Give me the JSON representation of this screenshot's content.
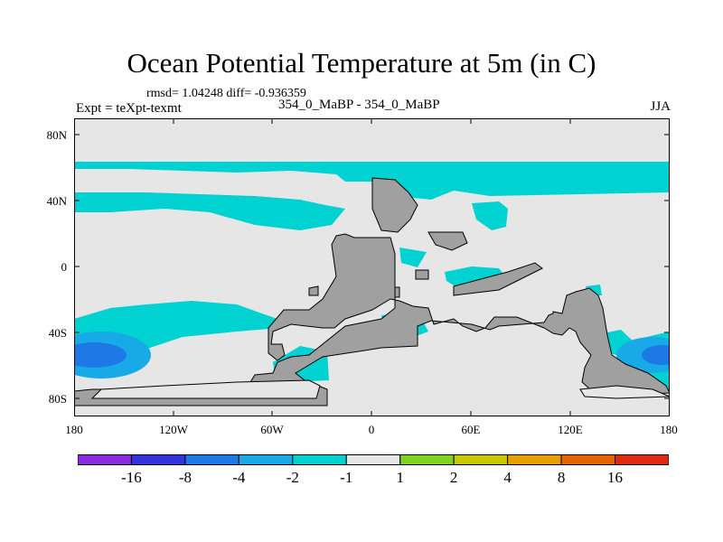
{
  "title": "Ocean Potential Temperature at 5m (in C)",
  "stats": "rmsd= 1.04248 diff= -0.936359",
  "expt": "Expt = teXpt-texmt",
  "case": "354_0_MaBP - 354_0_MaBP",
  "season": "JJA",
  "map": {
    "projection": "cylindrical-equidistant",
    "lon_range": [
      -180,
      180
    ],
    "lat_range": [
      -90,
      90
    ],
    "land_color": "#a0a0a0",
    "background_color": "#e6e6e6",
    "y_ticks": [
      "80N",
      "40N",
      "0",
      "40S",
      "80S"
    ],
    "x_ticks": [
      "180",
      "120W",
      "60W",
      "0",
      "60E",
      "120E",
      "180"
    ]
  },
  "legend": {
    "labels": [
      "-16",
      "-8",
      "-4",
      "-2",
      "-1",
      "1",
      "2",
      "4",
      "8",
      "16"
    ],
    "colors": [
      "#8a2be2",
      "#3333dd",
      "#1e78e6",
      "#18aae6",
      "#00d2d2",
      "#e6e6e6",
      "#7ed321",
      "#c8c800",
      "#e6a000",
      "#e66400",
      "#e02814"
    ]
  }
}
